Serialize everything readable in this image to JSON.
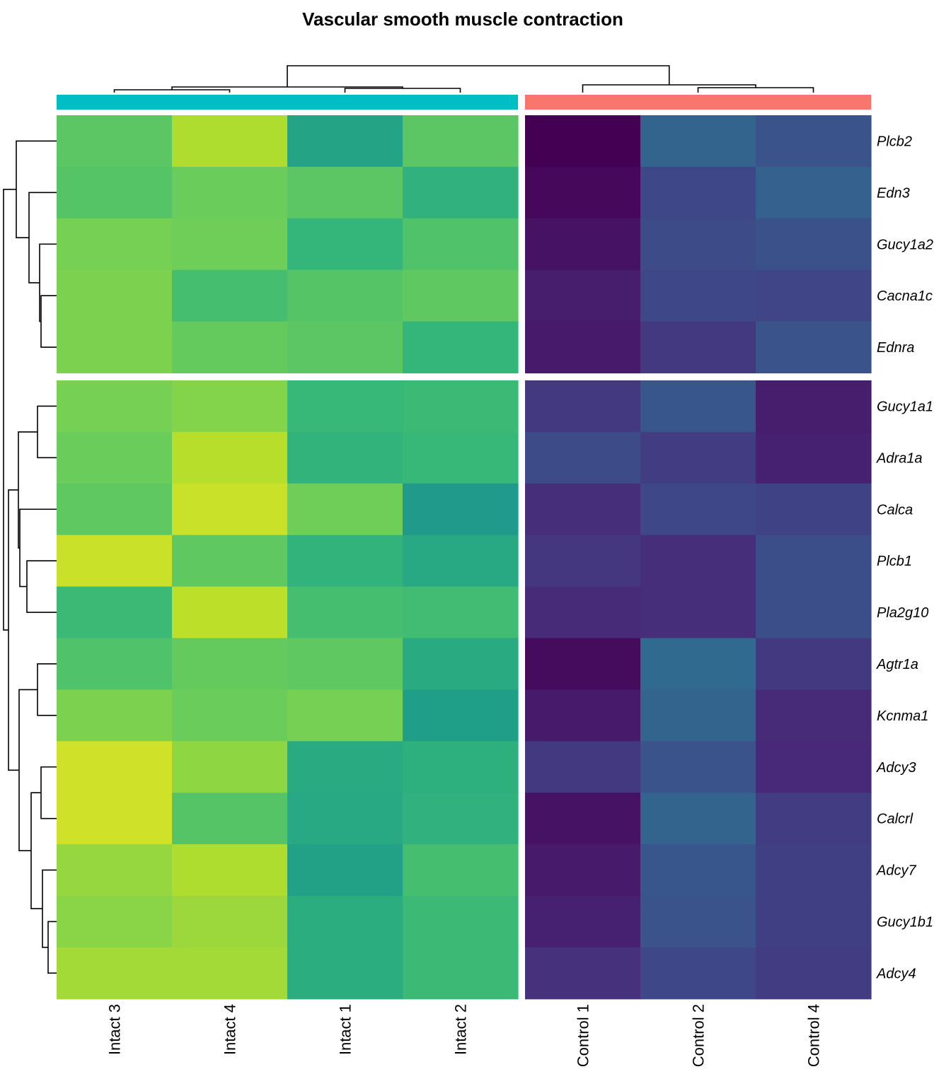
{
  "chart_data": {
    "type": "heatmap",
    "title": "Vascular smooth muscle contraction",
    "colormap": "viridis",
    "columns": [
      "Intact 3",
      "Intact 4",
      "Intact 1",
      "Intact 2",
      "Control 1",
      "Control 2",
      "Control 4"
    ],
    "column_groups": [
      {
        "name": "Intact",
        "color": "#00BFC4",
        "columns": [
          "Intact 3",
          "Intact 4",
          "Intact 1",
          "Intact 2"
        ]
      },
      {
        "name": "Control",
        "color": "#F8766D",
        "columns": [
          "Control 1",
          "Control 2",
          "Control 4"
        ]
      }
    ],
    "rows": [
      "Plcb2",
      "Edn3",
      "Gucy1a2",
      "Cacna1c",
      "Ednra",
      "Gucy1a1",
      "Adra1a",
      "Calca",
      "Plcb1",
      "Pla2g10",
      "Agtr1a",
      "Kcnma1",
      "Adcy3",
      "Calcrl",
      "Adcy7",
      "Gucy1b1",
      "Adcy4"
    ],
    "row_groups": [
      {
        "rows": [
          "Plcb2",
          "Edn3",
          "Gucy1a2",
          "Cacna1c",
          "Ednra"
        ]
      },
      {
        "rows": [
          "Gucy1a1",
          "Adra1a",
          "Calca",
          "Plcb1",
          "Pla2g10",
          "Agtr1a",
          "Kcnma1",
          "Adcy3",
          "Calcrl",
          "Adcy7",
          "Gucy1b1",
          "Adcy4"
        ]
      }
    ],
    "scale_range": [
      0,
      1
    ],
    "values": [
      [
        0.74,
        0.88,
        0.58,
        0.74,
        0.0,
        0.32,
        0.26
      ],
      [
        0.73,
        0.77,
        0.74,
        0.64,
        0.02,
        0.22,
        0.31
      ],
      [
        0.79,
        0.78,
        0.66,
        0.72,
        0.05,
        0.23,
        0.25
      ],
      [
        0.8,
        0.7,
        0.73,
        0.75,
        0.08,
        0.22,
        0.21
      ],
      [
        0.8,
        0.76,
        0.74,
        0.66,
        0.07,
        0.17,
        0.26
      ],
      [
        0.79,
        0.81,
        0.67,
        0.68,
        0.17,
        0.27,
        0.08
      ],
      [
        0.77,
        0.89,
        0.65,
        0.67,
        0.23,
        0.18,
        0.09
      ],
      [
        0.75,
        0.92,
        0.78,
        0.54,
        0.13,
        0.22,
        0.2
      ],
      [
        0.92,
        0.75,
        0.65,
        0.6,
        0.16,
        0.13,
        0.24
      ],
      [
        0.68,
        0.9,
        0.7,
        0.69,
        0.12,
        0.13,
        0.24
      ],
      [
        0.72,
        0.76,
        0.75,
        0.61,
        0.03,
        0.34,
        0.17
      ],
      [
        0.8,
        0.77,
        0.79,
        0.56,
        0.07,
        0.32,
        0.12
      ],
      [
        0.93,
        0.83,
        0.61,
        0.63,
        0.17,
        0.26,
        0.11
      ],
      [
        0.93,
        0.73,
        0.6,
        0.64,
        0.05,
        0.32,
        0.18
      ],
      [
        0.84,
        0.88,
        0.57,
        0.7,
        0.07,
        0.27,
        0.19
      ],
      [
        0.82,
        0.85,
        0.62,
        0.68,
        0.09,
        0.26,
        0.19
      ],
      [
        0.86,
        0.86,
        0.62,
        0.68,
        0.14,
        0.22,
        0.18
      ]
    ],
    "row_dendrogram": true,
    "column_dendrogram": true
  }
}
